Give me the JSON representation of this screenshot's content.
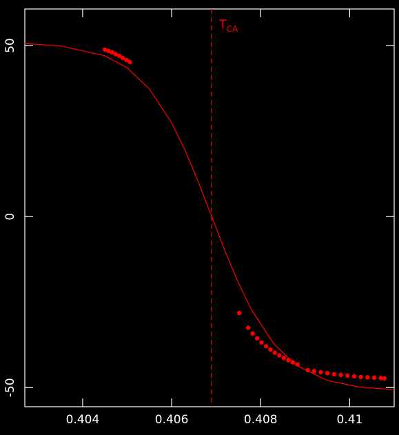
{
  "chart_data": {
    "type": "scatter",
    "xlim": [
      0.4027,
      0.411
    ],
    "ylim": [
      -55.6,
      60.7
    ],
    "xticks": [
      0.404,
      0.406,
      0.408,
      0.41
    ],
    "yticks": [
      50,
      0,
      -50
    ],
    "annotation": {
      "label": "T",
      "subscript": "CA",
      "x": 0.4069,
      "color": "#ff0000"
    },
    "series": [
      {
        "kind": "line",
        "color": "#ff0000",
        "x": [
          0.4027,
          0.4035,
          0.4045,
          0.405,
          0.4055,
          0.406,
          0.4063,
          0.4066,
          0.4069,
          0.4072,
          0.4075,
          0.4078,
          0.4083,
          0.4088,
          0.4095,
          0.4102,
          0.411
        ],
        "values": [
          50.6,
          49.9,
          47.0,
          43.5,
          37.3,
          27.4,
          19.4,
          10.1,
          0,
          -10.1,
          -19.4,
          -27.4,
          -37.3,
          -43.5,
          -47.9,
          -49.8,
          -50.6
        ]
      },
      {
        "kind": "scatter",
        "color": "#ff0000",
        "x": [
          0.4045,
          0.40458,
          0.40466,
          0.40474,
          0.40482,
          0.4049,
          0.40498,
          0.40506,
          0.40752,
          0.40772,
          0.40782,
          0.40792,
          0.40802,
          0.40812,
          0.40822,
          0.40832,
          0.40842,
          0.40852,
          0.40862,
          0.40872,
          0.40883,
          0.40906,
          0.4092,
          0.40935,
          0.4095,
          0.40965,
          0.4098,
          0.40995,
          0.4101,
          0.41025,
          0.4104,
          0.41055,
          0.4107,
          0.41078
        ],
        "values": [
          48.8,
          48.4,
          48.0,
          47.5,
          47.0,
          46.4,
          45.8,
          45.2,
          -28.2,
          -32.5,
          -34.2,
          -35.6,
          -36.8,
          -37.9,
          -38.9,
          -39.8,
          -40.6,
          -41.3,
          -42.0,
          -42.6,
          -43.2,
          -44.9,
          -45.2,
          -45.5,
          -45.8,
          -46.1,
          -46.3,
          -46.5,
          -46.7,
          -46.9,
          -47.0,
          -47.1,
          -47.2,
          -47.3
        ]
      }
    ]
  }
}
